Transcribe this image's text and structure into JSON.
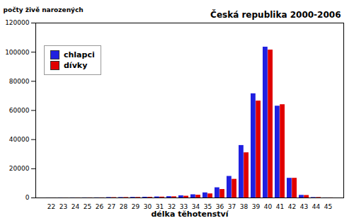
{
  "chart_data": {
    "type": "bar",
    "title": "Česká republika 2000-2006",
    "y_label": "počty živě narozených",
    "x_label": "délka těhotenství",
    "categories": [
      22,
      23,
      24,
      25,
      26,
      27,
      28,
      29,
      30,
      31,
      32,
      33,
      34,
      35,
      36,
      37,
      38,
      39,
      40,
      41,
      42,
      43,
      44,
      45
    ],
    "series": [
      {
        "name": "chlapci",
        "color": "#2020e0",
        "values": [
          20,
          40,
          60,
          80,
          100,
          300,
          300,
          400,
          500,
          700,
          900,
          1500,
          2200,
          3500,
          7000,
          14800,
          36000,
          71500,
          103500,
          63000,
          13500,
          1800,
          300,
          50
        ]
      },
      {
        "name": "dívky",
        "color": "#e00000",
        "values": [
          20,
          30,
          50,
          70,
          90,
          250,
          300,
          350,
          450,
          600,
          800,
          1200,
          1900,
          2800,
          5800,
          12800,
          31000,
          66500,
          101500,
          64000,
          13500,
          1700,
          300,
          50
        ]
      }
    ],
    "ylim": [
      0,
      120000
    ],
    "yticks": [
      0,
      20000,
      40000,
      60000,
      80000,
      100000,
      120000
    ],
    "grid": false,
    "legend": "top-left"
  }
}
